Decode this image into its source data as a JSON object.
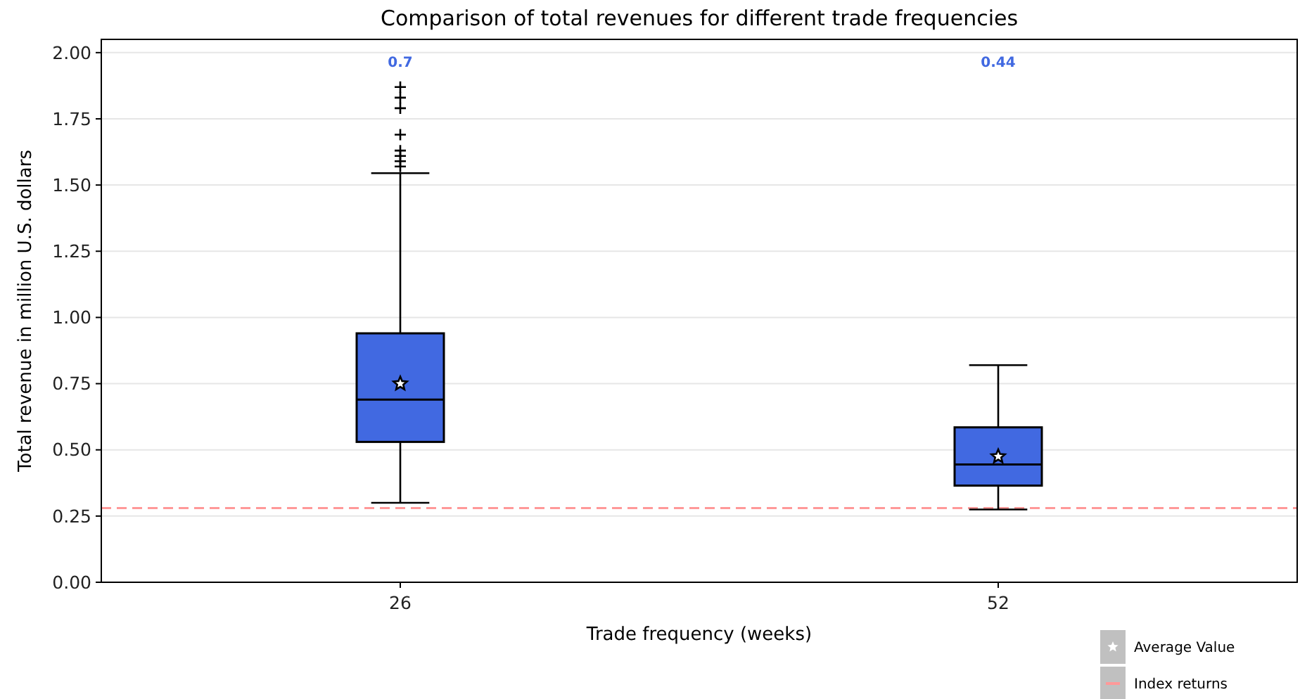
{
  "chart_data": {
    "type": "box",
    "title": "Comparison of total revenues for different trade frequencies",
    "xlabel": "Trade frequency (weeks)",
    "ylabel": "Total revenue in million U.S. dollars",
    "categories": [
      "26",
      "52"
    ],
    "series": [
      {
        "color": "#4169e1",
        "boxes": [
          {
            "low": 0.3,
            "q1": 0.53,
            "median": 0.69,
            "q3": 0.94,
            "high": 1.545,
            "outliers": [
              1.57,
              1.59,
              1.61,
              1.63,
              1.69,
              1.79,
              1.83,
              1.87
            ]
          },
          {
            "low": 0.275,
            "q1": 0.365,
            "median": 0.445,
            "q3": 0.585,
            "high": 0.82
          }
        ]
      },
      {
        "type": "scatter",
        "name": "Average Value",
        "color": "#ffffff",
        "marker": "star",
        "x": [
          "26",
          "52"
        ],
        "values": [
          0.75,
          0.475
        ]
      }
    ],
    "ylim": [
      0,
      2.05
    ],
    "yticks": [
      {
        "value": 0,
        "label": "0.00"
      },
      {
        "value": 0.25,
        "label": "0.25"
      },
      {
        "value": 0.5,
        "label": "0.50"
      },
      {
        "value": 0.75,
        "label": "0.75"
      },
      {
        "value": 1,
        "label": "1.00"
      },
      {
        "value": 1.25,
        "label": "1.25"
      },
      {
        "value": 1.5,
        "label": "1.50"
      },
      {
        "value": 1.75,
        "label": "1.75"
      },
      {
        "value": 2,
        "label": "2.00"
      }
    ],
    "grid": "y",
    "legend": "bottom right",
    "ref_lines": [
      {
        "axis": "y",
        "value": 0.28,
        "label": "Index returns",
        "color": "#ff9999",
        "line_style": "dashed"
      }
    ],
    "annotations": [
      "0.7",
      "0.44"
    ]
  }
}
